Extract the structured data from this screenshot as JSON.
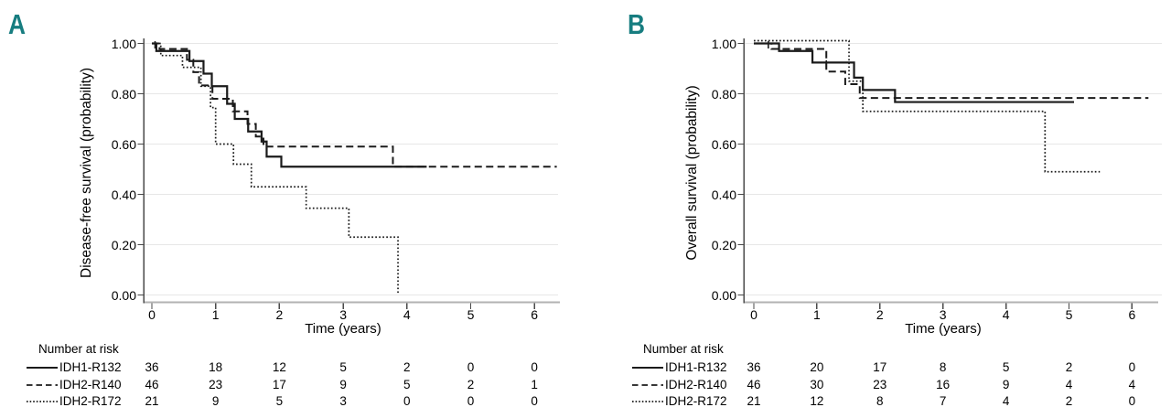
{
  "figure": {
    "panel_letter_color": "#177d80",
    "curve_color": "#1b1b1b",
    "background": "#ffffff"
  },
  "chart_data": [
    {
      "type": "line",
      "subtype": "kaplan_meier_step",
      "panel_letter": "A",
      "title": "",
      "ylabel": "Disease-free survival (probability)",
      "xlabel": "Time (years)",
      "ylim": [
        0.0,
        1.0
      ],
      "xlim": [
        0,
        6.4
      ],
      "ytick_labels": [
        "1.00",
        "0.80",
        "0.60",
        "0.40",
        "0.20",
        "0.00"
      ],
      "ytick_values": [
        1.0,
        0.8,
        0.6,
        0.4,
        0.2,
        0.0
      ],
      "xtick_labels": [
        "0",
        "1",
        "2",
        "3",
        "4",
        "5",
        "6"
      ],
      "xtick_values": [
        0,
        1,
        2,
        3,
        4,
        5,
        6
      ],
      "grid": "horizontal",
      "legend_position": "risk-table-left",
      "series": [
        {
          "name": "IDH1-R132",
          "line_style": "solid",
          "points": [
            [
              0,
              1.0
            ],
            [
              0.07,
              0.97
            ],
            [
              0.59,
              0.93
            ],
            [
              0.81,
              0.88
            ],
            [
              0.94,
              0.83
            ],
            [
              1.18,
              0.76
            ],
            [
              1.3,
              0.7
            ],
            [
              1.51,
              0.65
            ],
            [
              1.72,
              0.61
            ],
            [
              1.8,
              0.55
            ],
            [
              2.03,
              0.51
            ]
          ],
          "end_time": 4.31,
          "censor_ticks": [
            [
              0.05,
              1.0
            ]
          ]
        },
        {
          "name": "IDH2-R140",
          "line_style": "dashed",
          "points": [
            [
              0,
              1.0
            ],
            [
              0.12,
              0.978
            ],
            [
              0.55,
              0.935
            ],
            [
              0.65,
              0.886
            ],
            [
              0.74,
              0.833
            ],
            [
              0.95,
              0.78
            ],
            [
              1.27,
              0.73
            ],
            [
              1.5,
              0.68
            ],
            [
              1.63,
              0.63
            ],
            [
              1.75,
              0.59
            ],
            [
              3.78,
              0.51
            ]
          ],
          "end_time": 6.35,
          "censor_ticks": []
        },
        {
          "name": "IDH2-R172",
          "line_style": "dotted",
          "points": [
            [
              0,
              1.0
            ],
            [
              0.14,
              0.952
            ],
            [
              0.48,
              0.905
            ],
            [
              0.77,
              0.83
            ],
            [
              0.92,
              0.745
            ],
            [
              1.0,
              0.6
            ],
            [
              1.28,
              0.52
            ],
            [
              1.56,
              0.43
            ],
            [
              2.42,
              0.345
            ],
            [
              3.09,
              0.23
            ],
            [
              3.86,
              0.0
            ]
          ],
          "end_time": 3.86,
          "censor_ticks": []
        }
      ],
      "number_at_risk": {
        "header": "Number at risk",
        "times": [
          0,
          1,
          2,
          3,
          4,
          5,
          6
        ],
        "rows": [
          {
            "name": "IDH1-R132",
            "line_style": "solid",
            "values": [
              36,
              18,
              12,
              5,
              2,
              0,
              0
            ]
          },
          {
            "name": "IDH2-R140",
            "line_style": "dashed",
            "values": [
              46,
              23,
              17,
              9,
              5,
              2,
              1
            ]
          },
          {
            "name": "IDH2-R172",
            "line_style": "dotted",
            "values": [
              21,
              9,
              5,
              3,
              0,
              0,
              0
            ]
          }
        ]
      }
    },
    {
      "type": "line",
      "subtype": "kaplan_meier_step",
      "panel_letter": "B",
      "title": "",
      "ylabel": "Overall survival (probability)",
      "xlabel": "Time (years)",
      "ylim": [
        0.0,
        1.0
      ],
      "xlim": [
        0,
        6.4
      ],
      "ytick_labels": [
        "1.00",
        "0.80",
        "0.60",
        "0.40",
        "0.20",
        "0.00"
      ],
      "ytick_values": [
        1.0,
        0.8,
        0.6,
        0.4,
        0.2,
        0.0
      ],
      "xtick_labels": [
        "0",
        "1",
        "2",
        "3",
        "4",
        "5",
        "6"
      ],
      "xtick_values": [
        0,
        1,
        2,
        3,
        4,
        5,
        6
      ],
      "grid": "horizontal",
      "legend_position": "risk-table-left",
      "series": [
        {
          "name": "IDH1-R132",
          "line_style": "solid",
          "points": [
            [
              0,
              1.0
            ],
            [
              0.4,
              0.97
            ],
            [
              0.93,
              0.924
            ],
            [
              1.59,
              0.864
            ],
            [
              1.73,
              0.815
            ],
            [
              2.24,
              0.767
            ]
          ],
          "end_time": 5.08,
          "censor_ticks": [
            [
              0.23,
              1.0
            ],
            [
              1.15,
              0.924
            ]
          ]
        },
        {
          "name": "IDH2-R140",
          "line_style": "dashed",
          "points": [
            [
              0,
              1.0
            ],
            [
              0.28,
              0.978
            ],
            [
              1.15,
              0.888
            ],
            [
              1.45,
              0.838
            ],
            [
              1.68,
              0.783
            ]
          ],
          "end_time": 6.26,
          "censor_ticks": []
        },
        {
          "name": "IDH2-R172",
          "line_style": "dotted",
          "points": [
            [
              0,
              1.0
            ],
            [
              1.51,
              0.85
            ],
            [
              1.73,
              0.73
            ],
            [
              4.62,
              0.49
            ]
          ],
          "end_time": 5.49,
          "censor_ticks": []
        }
      ],
      "number_at_risk": {
        "header": "Number at risk",
        "times": [
          0,
          1,
          2,
          3,
          4,
          5,
          6
        ],
        "rows": [
          {
            "name": "IDH1-R132",
            "line_style": "solid",
            "values": [
              36,
              20,
              17,
              8,
              5,
              2,
              0
            ]
          },
          {
            "name": "IDH2-R140",
            "line_style": "dashed",
            "values": [
              46,
              30,
              23,
              16,
              9,
              4,
              4
            ]
          },
          {
            "name": "IDH2-R172",
            "line_style": "dotted",
            "values": [
              21,
              12,
              8,
              7,
              4,
              2,
              0
            ]
          }
        ]
      }
    }
  ]
}
